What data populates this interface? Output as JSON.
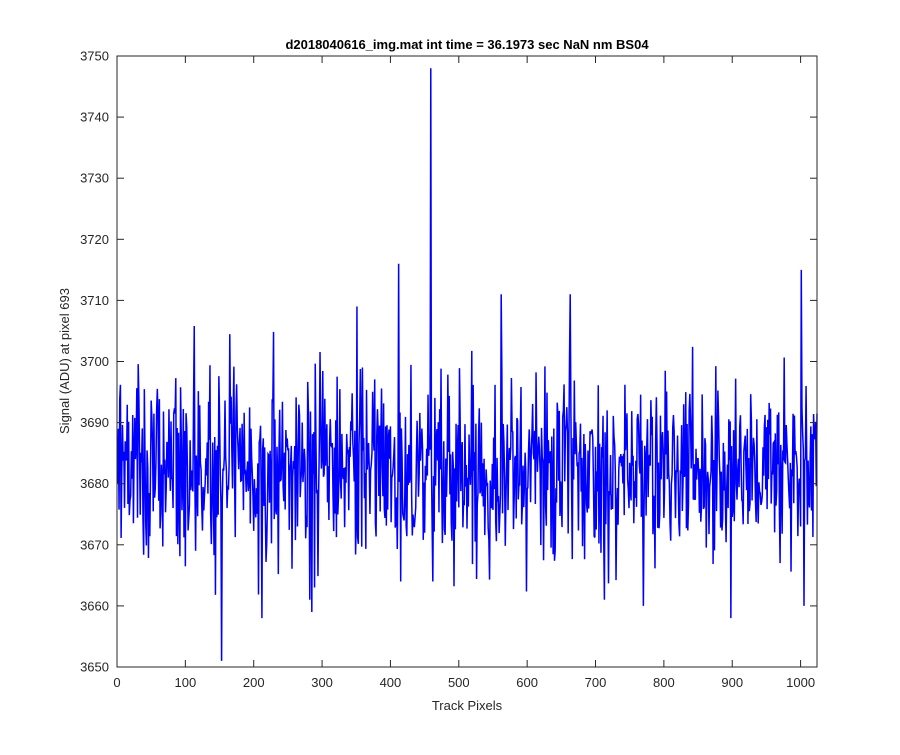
{
  "chart_data": {
    "type": "line",
    "title": "d2018040616_img.mat int time = 36.1973 sec  NaN nm BS04",
    "xlabel": "Track Pixels",
    "ylabel": "Signal (ADU) at pixel 693",
    "xlim": [
      0,
      1024
    ],
    "ylim": [
      3650,
      3750
    ],
    "xticks": [
      "0",
      "100",
      "200",
      "300",
      "400",
      "500",
      "600",
      "700",
      "800",
      "900",
      "1000"
    ],
    "yticks": [
      "3650",
      "3660",
      "3670",
      "3680",
      "3690",
      "3700",
      "3710",
      "3720",
      "3730",
      "3740",
      "3750"
    ],
    "grid": false,
    "line_color": "#0000ff",
    "series": [
      {
        "x_start": 1,
        "x_step": 1,
        "baseline": 3682.5,
        "noise_std": 7.5,
        "count": 1024,
        "peaks": [
          {
            "x": 153,
            "y": 3651
          },
          {
            "x": 212,
            "y": 3658
          },
          {
            "x": 285,
            "y": 3659
          },
          {
            "x": 351,
            "y": 3709
          },
          {
            "x": 412,
            "y": 3716
          },
          {
            "x": 415,
            "y": 3664
          },
          {
            "x": 459,
            "y": 3748
          },
          {
            "x": 462,
            "y": 3664
          },
          {
            "x": 562,
            "y": 3711
          },
          {
            "x": 663,
            "y": 3711
          },
          {
            "x": 770,
            "y": 3660
          },
          {
            "x": 898,
            "y": 3658
          },
          {
            "x": 1001,
            "y": 3715
          },
          {
            "x": 1005,
            "y": 3660
          }
        ]
      }
    ]
  }
}
